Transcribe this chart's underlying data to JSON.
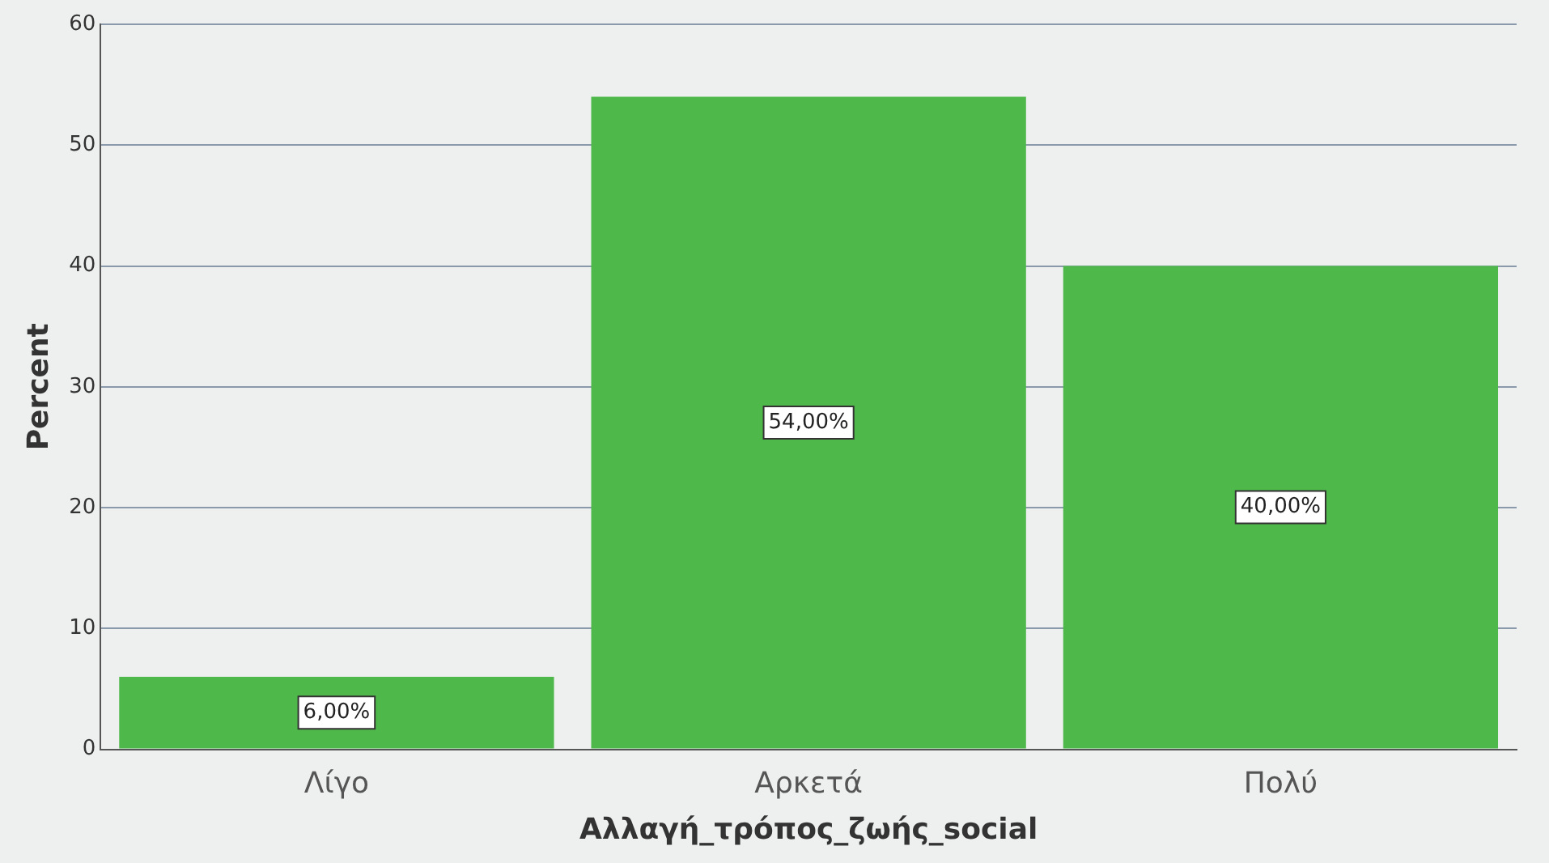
{
  "chart_data": {
    "type": "bar",
    "xlabel": "Αλλαγή_τρόπος_ζωής_social",
    "ylabel": "Percent",
    "categories": [
      "Λίγο",
      "Αρκετά",
      "Πολύ"
    ],
    "values": [
      6,
      54,
      40
    ],
    "value_labels": [
      "6,00%",
      "54,00%",
      "40,00%"
    ],
    "color": "#4fb84a",
    "ylim": [
      0,
      60
    ],
    "yticks": [
      0,
      10,
      20,
      30,
      40,
      50,
      60
    ],
    "grid": "y"
  }
}
